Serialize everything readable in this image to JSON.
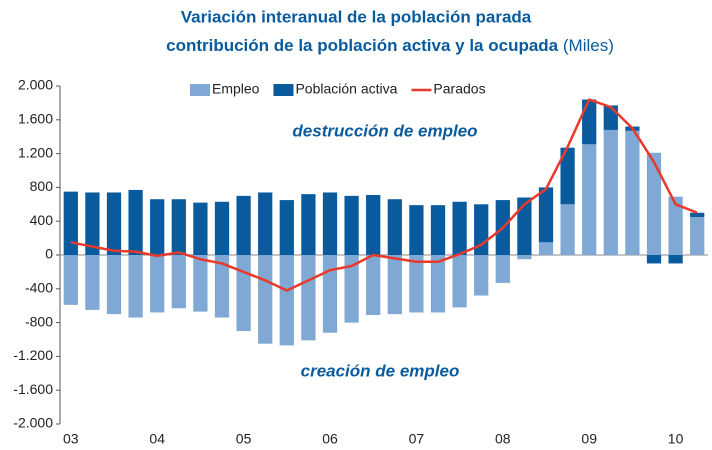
{
  "chart_data": {
    "type": "bar",
    "title": [
      "Variación interanual de la población parada",
      "contribución de la población activa y la ocupada"
    ],
    "unit": "(Miles)",
    "annotations": [
      "destrucción de empleo",
      "creación de empleo"
    ],
    "categories": [
      "03",
      null,
      null,
      null,
      "04",
      null,
      null,
      null,
      "05",
      null,
      null,
      null,
      "06",
      null,
      null,
      null,
      "07",
      null,
      null,
      null,
      "08",
      null,
      null,
      null,
      "09",
      null,
      null,
      null,
      "10",
      null
    ],
    "series": [
      {
        "name": "Empleo",
        "color": "#7fa9d4",
        "kind": "bar",
        "values": [
          -590,
          -650,
          -700,
          -740,
          -680,
          -630,
          -670,
          -740,
          -900,
          -1050,
          -1070,
          -1010,
          -920,
          -800,
          -710,
          -700,
          -680,
          -680,
          -620,
          -480,
          -330,
          -50,
          150,
          600,
          1310,
          1480,
          1470,
          1210,
          690,
          450
        ]
      },
      {
        "name": "Población activa",
        "color": "#0a5b9e",
        "kind": "bar",
        "values": [
          750,
          740,
          740,
          770,
          660,
          660,
          620,
          630,
          700,
          740,
          650,
          720,
          740,
          700,
          710,
          660,
          590,
          590,
          630,
          600,
          650,
          680,
          650,
          670,
          530,
          290,
          50,
          -100,
          -100,
          50
        ]
      },
      {
        "name": "Parados",
        "color": "#e8392b",
        "kind": "line",
        "values": [
          150,
          100,
          50,
          40,
          -10,
          30,
          -50,
          -100,
          -200,
          -300,
          -420,
          -300,
          -180,
          -130,
          0,
          -40,
          -80,
          -80,
          10,
          120,
          320,
          600,
          780,
          1280,
          1840,
          1750,
          1500,
          1100,
          600,
          500
        ]
      }
    ],
    "ylim": [
      -2000,
      2000
    ],
    "yticks": [
      {
        "value": 2000,
        "label": "2.000"
      },
      {
        "value": 1600,
        "label": "1.600"
      },
      {
        "value": 1200,
        "label": "1.200"
      },
      800,
      400,
      0,
      -400,
      -800,
      {
        "value": -1200,
        "label": "-1.200"
      },
      {
        "value": -1600,
        "label": "-1.600"
      },
      {
        "value": -2000,
        "label": "-2.000"
      }
    ]
  }
}
